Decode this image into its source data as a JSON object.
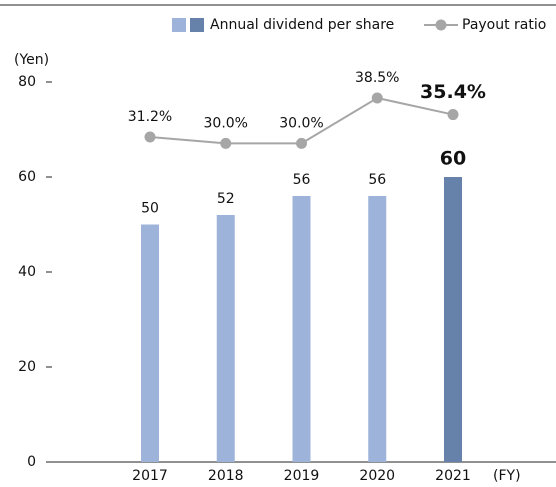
{
  "chart_data": {
    "type": "bar_line",
    "y_label": "(Yen)",
    "x_label": "(FY)",
    "categories": [
      "2017",
      "2018",
      "2019",
      "2020",
      "2021"
    ],
    "ylim": [
      0,
      80
    ],
    "yticks": [
      0,
      20,
      40,
      60,
      80
    ],
    "y2lim": [
      -29.7,
      41.5
    ],
    "series": [
      {
        "name": "Annual dividend per share",
        "type": "bar",
        "colors": [
          "#9db3d9",
          "#9db3d9",
          "#9db3d9",
          "#9db3d9",
          "#6682ab"
        ],
        "values": [
          50,
          52,
          56,
          56,
          60
        ]
      },
      {
        "name": "Payout ratio",
        "type": "line",
        "axis": "y2",
        "color": "#a6a6a6",
        "values": [
          31.2,
          30.0,
          30.0,
          38.5,
          35.4
        ],
        "value_labels": [
          "31.2%",
          "30.0%",
          "30.0%",
          "38.5%",
          "35.4%"
        ]
      }
    ]
  }
}
